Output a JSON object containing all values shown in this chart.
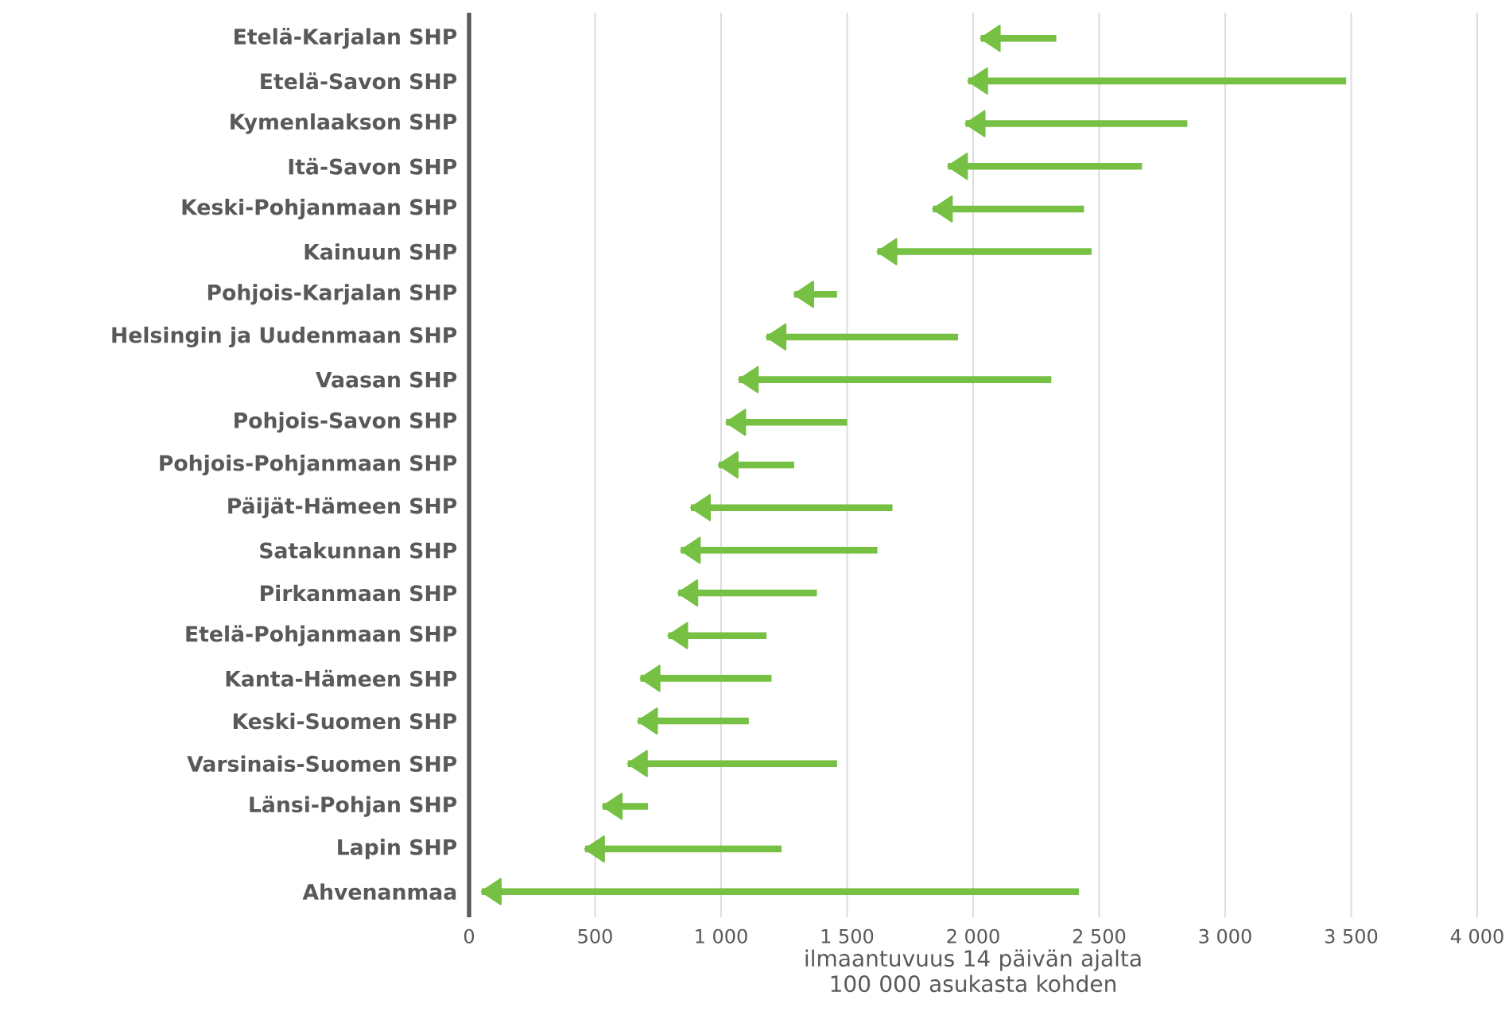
{
  "chart_data": {
    "type": "bar",
    "orientation": "horizontal",
    "xlabel": "ilmaantuvuus 14 päivän ajalta 100 000 asukasta kohden",
    "categories": [
      "Etelä-Karjalan SHP",
      "Etelä-Savon SHP",
      "Kymenlaakson SHP",
      "Itä-Savon SHP",
      "Keski-Pohjanmaan SHP",
      "Kainuun SHP",
      "Pohjois-Karjalan SHP",
      "Helsingin ja Uudenmaan SHP",
      "Vaasan SHP",
      "Pohjois-Savon SHP",
      "Pohjois-Pohjanmaan SHP",
      "Päijät-Hämeen SHP",
      "Satakunnan SHP",
      "Pirkanmaan SHP",
      "Etelä-Pohjanmaan SHP",
      "Kanta-Hämeen SHP",
      "Keski-Suomen SHP",
      "Varsinais-Suomen SHP",
      "Länsi-Pohjan SHP",
      "Lapin SHP",
      "Ahvenanmaa"
    ],
    "base": [
      2330,
      3480,
      2850,
      2670,
      2440,
      2470,
      1460,
      1940,
      2310,
      1500,
      1290,
      1680,
      1620,
      1380,
      1180,
      1200,
      1110,
      1460,
      710,
      1240,
      2420
    ],
    "values": [
      -300,
      -1500,
      -880,
      -770,
      -600,
      -850,
      -170,
      -760,
      -1240,
      -480,
      -300,
      -800,
      -780,
      -550,
      -390,
      -520,
      -440,
      -830,
      -180,
      -780,
      -2370
    ],
    "color": "#76c043",
    "xlim": [
      0,
      4000
    ],
    "xticks": [
      0,
      500,
      {
        "value": 1000,
        "label": "1 000"
      },
      {
        "value": 1500,
        "label": "1 500"
      },
      {
        "value": 2000,
        "label": "2 000"
      },
      {
        "value": 2500,
        "label": "2 500"
      },
      {
        "value": 3000,
        "label": "3 000"
      },
      {
        "value": 3500,
        "label": "3 500"
      },
      {
        "value": 4000,
        "label": "4 000"
      }
    ],
    "grid": "x"
  }
}
